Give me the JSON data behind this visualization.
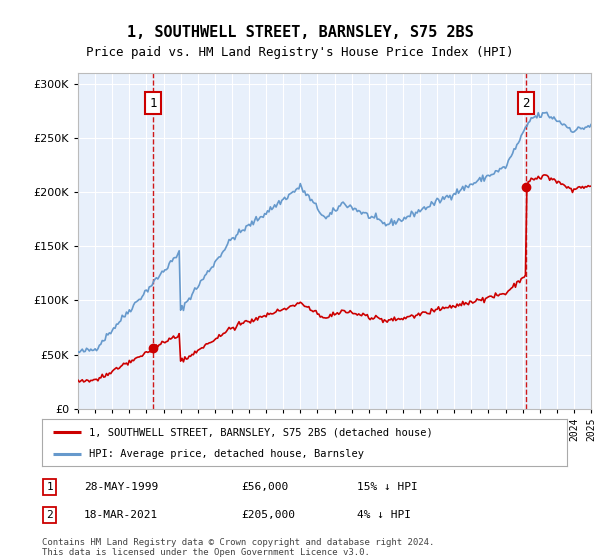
{
  "title": "1, SOUTHWELL STREET, BARNSLEY, S75 2BS",
  "subtitle": "Price paid vs. HM Land Registry's House Price Index (HPI)",
  "red_label": "1, SOUTHWELL STREET, BARNSLEY, S75 2BS (detached house)",
  "blue_label": "HPI: Average price, detached house, Barnsley",
  "footer": "Contains HM Land Registry data © Crown copyright and database right 2024.\nThis data is licensed under the Open Government Licence v3.0.",
  "point1_label": "28-MAY-1999",
  "point1_price": "£56,000",
  "point1_hpi": "15% ↓ HPI",
  "point2_label": "18-MAR-2021",
  "point2_price": "£205,000",
  "point2_hpi": "4% ↓ HPI",
  "ylim": [
    0,
    310000
  ],
  "yticks": [
    0,
    50000,
    100000,
    150000,
    200000,
    250000,
    300000
  ],
  "plot_bg": "#e8f0fb",
  "red_color": "#cc0000",
  "blue_color": "#6699cc",
  "point1_x": 1999.4,
  "point1_y": 56000,
  "point2_x": 2021.2,
  "point2_y": 205000,
  "xmin": 1995,
  "xmax": 2025
}
